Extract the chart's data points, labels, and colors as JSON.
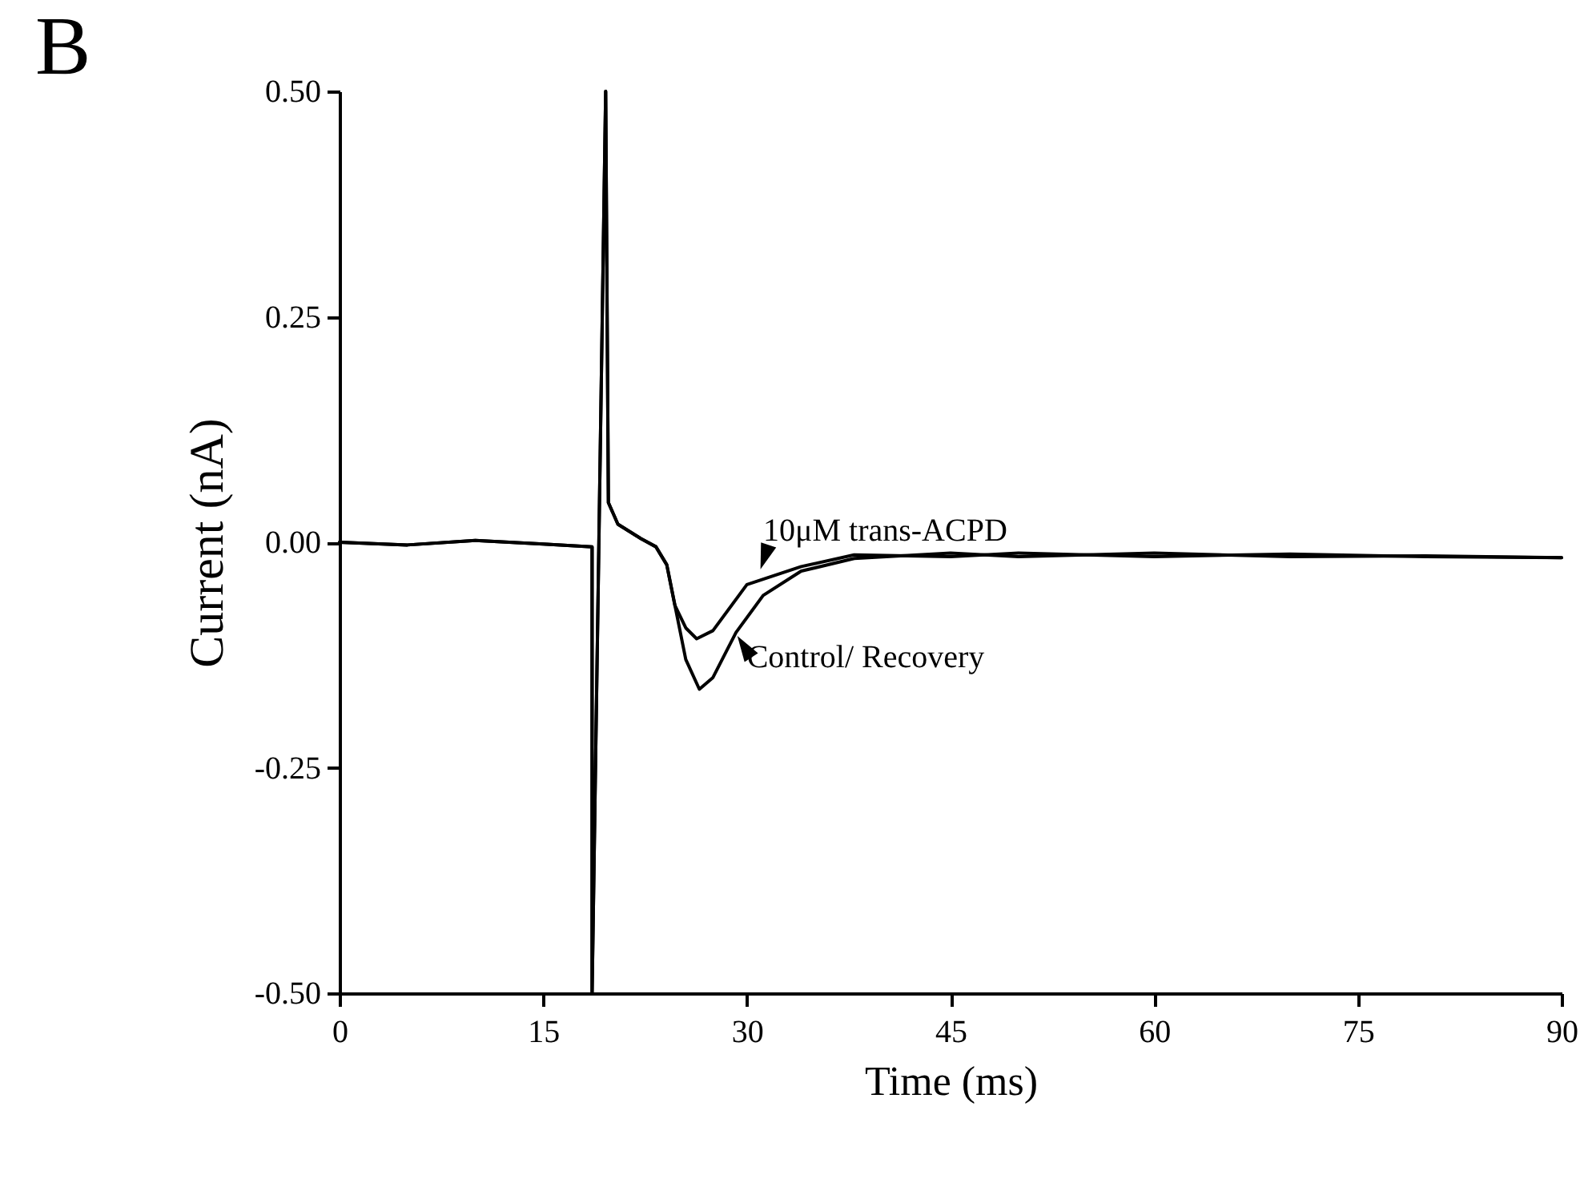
{
  "chart_data": {
    "type": "line",
    "title": "B",
    "xlabel": "Time (ms)",
    "ylabel": "Current (nA)",
    "xlim": [
      0,
      90
    ],
    "xticks": [
      0,
      15,
      30,
      45,
      60,
      75,
      90
    ],
    "ylim": [
      -0.5,
      0.5
    ],
    "yticks": [
      {
        "value": -0.5,
        "label": "-0.50"
      },
      {
        "value": -0.25,
        "label": "-0.25"
      },
      {
        "value": 0,
        "label": "0.00"
      },
      {
        "value": 0.25,
        "label": "0.25"
      },
      {
        "value": 0.5,
        "label": "0.50"
      }
    ],
    "grid": false,
    "marker": "none",
    "line_style": "solid",
    "series": [
      {
        "name": "Control/ Recovery",
        "color": "#000000",
        "x": [
          0,
          5,
          10,
          15,
          18.6,
          18.6,
          19.6,
          19.8,
          20.5,
          22.2,
          23.3,
          24.1,
          24.7,
          25.5,
          26.5,
          27.5,
          29.2,
          31.2,
          34,
          37.9,
          45,
          50,
          60,
          70,
          80,
          90
        ],
        "values": [
          0,
          -0.003,
          0.002,
          -0.002,
          -0.005,
          -0.5,
          0.5,
          0.044,
          0.02,
          0.004,
          -0.005,
          -0.025,
          -0.07,
          -0.13,
          -0.163,
          -0.15,
          -0.1,
          -0.059,
          -0.032,
          -0.018,
          -0.012,
          -0.016,
          -0.012,
          -0.016,
          -0.015,
          -0.017
        ]
      },
      {
        "name": "10μM trans-ACPD",
        "color": "#000000",
        "x": [
          0,
          5,
          10,
          15,
          18.6,
          18.6,
          19.6,
          19.8,
          20.5,
          22.2,
          23.3,
          24.1,
          24.7,
          25.5,
          26.3,
          27.5,
          30,
          34,
          37.9,
          45,
          50,
          60,
          70,
          80,
          90
        ],
        "values": [
          0,
          -0.003,
          0.002,
          -0.002,
          -0.005,
          -0.5,
          0.5,
          0.044,
          0.02,
          0.004,
          -0.005,
          -0.025,
          -0.07,
          -0.095,
          -0.107,
          -0.098,
          -0.047,
          -0.027,
          -0.014,
          -0.016,
          -0.012,
          -0.016,
          -0.013,
          -0.016,
          -0.017
        ]
      }
    ]
  }
}
